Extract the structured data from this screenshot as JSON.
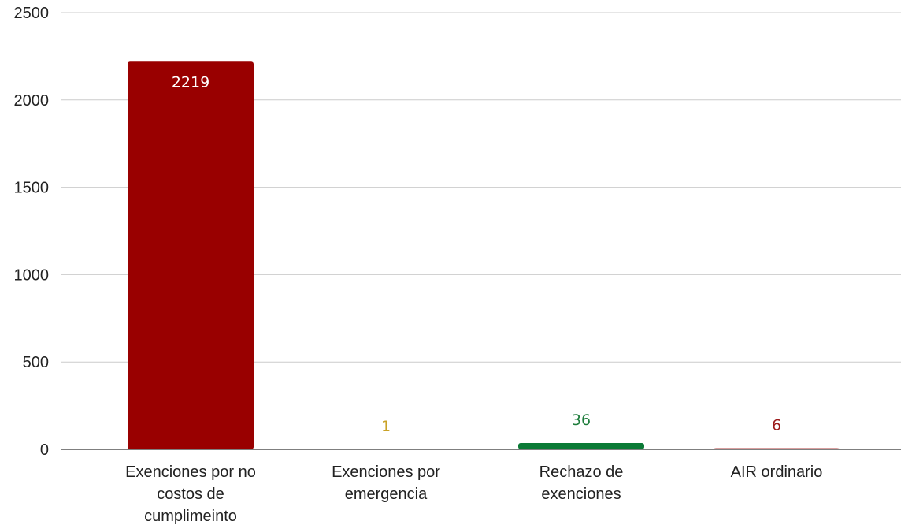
{
  "chart_data": {
    "type": "bar",
    "title": "",
    "xlabel": "",
    "ylabel": "",
    "ylim": [
      0,
      2500
    ],
    "yticks": [
      0,
      500,
      1000,
      1500,
      2000,
      2500
    ],
    "grid": true,
    "legend": "none",
    "categories": [
      [
        "Exenciones por no",
        "costos de",
        "cumplimeinto"
      ],
      [
        "Exenciones por",
        "emergencia"
      ],
      [
        "Rechazo de",
        "exenciones"
      ],
      [
        "AIR ordinario"
      ]
    ],
    "values": [
      2219,
      1,
      36,
      6
    ],
    "bar_colors": [
      "#990000",
      "#f1c232",
      "#0b7a36",
      "#990000"
    ],
    "label_colors": [
      "#ffffff",
      "#c9a227",
      "#1e7d3c",
      "#9c1b1b"
    ],
    "axis_color": "#333333",
    "grid_color": "#cccccc"
  }
}
